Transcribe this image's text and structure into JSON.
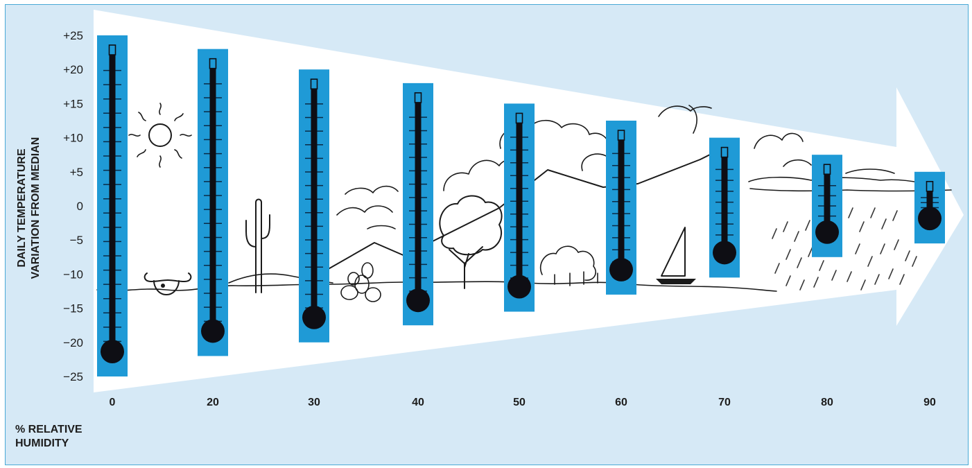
{
  "y_axis_title": [
    "DAILY TEMPERATURE",
    "VARIATION FROM MEDIAN"
  ],
  "x_axis_title": [
    "% RELATIVE",
    "HUMIDITY"
  ],
  "y_ticks": [
    "+25",
    "+20",
    "+15",
    "+10",
    "+5",
    "0",
    "−5",
    "−10",
    "−15",
    "−20",
    "−25"
  ],
  "thermometers": [
    {
      "humidity": "0",
      "high": 25,
      "low": -25
    },
    {
      "humidity": "20",
      "high": 23,
      "low": -22
    },
    {
      "humidity": "30",
      "high": 20,
      "low": -20
    },
    {
      "humidity": "40",
      "high": 18,
      "low": -17.5
    },
    {
      "humidity": "50",
      "high": 15,
      "low": -15.5
    },
    {
      "humidity": "60",
      "high": 12.5,
      "low": -13
    },
    {
      "humidity": "70",
      "high": 10,
      "low": -10.5
    },
    {
      "humidity": "80",
      "high": 7.5,
      "low": -7.5
    },
    {
      "humidity": "90",
      "high": 5,
      "low": -5.5
    }
  ],
  "colors": {
    "background": "#d6e9f6",
    "arrow": "#ffffff",
    "thermometer_band": "#1f9ad6",
    "mercury": "#0e0e14",
    "frame": "#49a9d6"
  },
  "icons": [
    "sun-icon",
    "cow-skull-icon",
    "cactus-icon",
    "prickly-pear-icon",
    "tree-icon",
    "shrubs-icon",
    "sailboat-icon",
    "clouds-icon",
    "rain-icon",
    "mountains-icon"
  ]
}
